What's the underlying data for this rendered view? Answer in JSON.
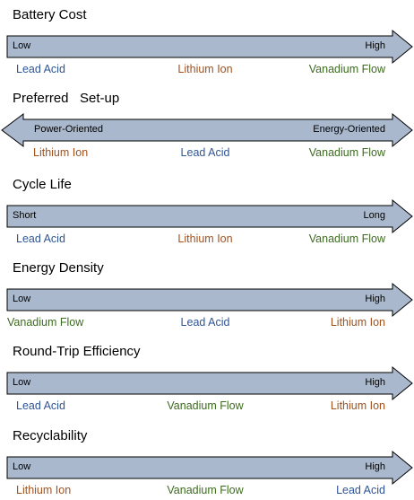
{
  "colors": {
    "arrow_fill": "#a9b8cd",
    "arrow_stroke": "#000000",
    "lead_acid": "#2f5597",
    "lithium_ion": "#a0521e",
    "vanadium_flow": "#3d6b1f"
  },
  "rows": [
    {
      "title": "Battery Cost",
      "direction": "right",
      "left_label": "Low",
      "right_label": "High",
      "techs": [
        {
          "label": "Lead Acid",
          "kind": "lead_acid"
        },
        {
          "label": "Lithium Ion",
          "kind": "lithium_ion"
        },
        {
          "label": "Vanadium Flow",
          "kind": "vanadium_flow"
        }
      ]
    },
    {
      "title": "Preferred   Set-up",
      "direction": "both",
      "left_label": "Power-Oriented",
      "right_label": "Energy-Oriented",
      "techs": [
        {
          "label": "Lithium Ion",
          "kind": "lithium_ion"
        },
        {
          "label": "Lead Acid",
          "kind": "lead_acid"
        },
        {
          "label": "Vanadium Flow",
          "kind": "vanadium_flow"
        }
      ]
    },
    {
      "title": "Cycle Life",
      "direction": "right",
      "left_label": "Short",
      "right_label": "Long",
      "techs": [
        {
          "label": "Lead Acid",
          "kind": "lead_acid"
        },
        {
          "label": "Lithium Ion",
          "kind": "lithium_ion"
        },
        {
          "label": "Vanadium Flow",
          "kind": "vanadium_flow"
        }
      ]
    },
    {
      "title": "Energy Density",
      "direction": "right",
      "left_label": "Low",
      "right_label": "High",
      "techs": [
        {
          "label": "Vanadium Flow",
          "kind": "vanadium_flow"
        },
        {
          "label": "Lead Acid",
          "kind": "lead_acid"
        },
        {
          "label": "Lithium Ion",
          "kind": "lithium_ion"
        }
      ]
    },
    {
      "title": "Round-Trip Efficiency",
      "direction": "right",
      "left_label": "Low",
      "right_label": "High",
      "techs": [
        {
          "label": "Lead Acid",
          "kind": "lead_acid"
        },
        {
          "label": "Vanadium Flow",
          "kind": "vanadium_flow"
        },
        {
          "label": "Lithium Ion",
          "kind": "lithium_ion"
        }
      ]
    },
    {
      "title": "Recyclability",
      "direction": "right",
      "left_label": "Low",
      "right_label": "High",
      "techs": [
        {
          "label": "Lithium Ion",
          "kind": "lithium_ion"
        },
        {
          "label": "Vanadium Flow",
          "kind": "vanadium_flow"
        },
        {
          "label": "Lead Acid",
          "kind": "lead_acid"
        }
      ]
    }
  ]
}
